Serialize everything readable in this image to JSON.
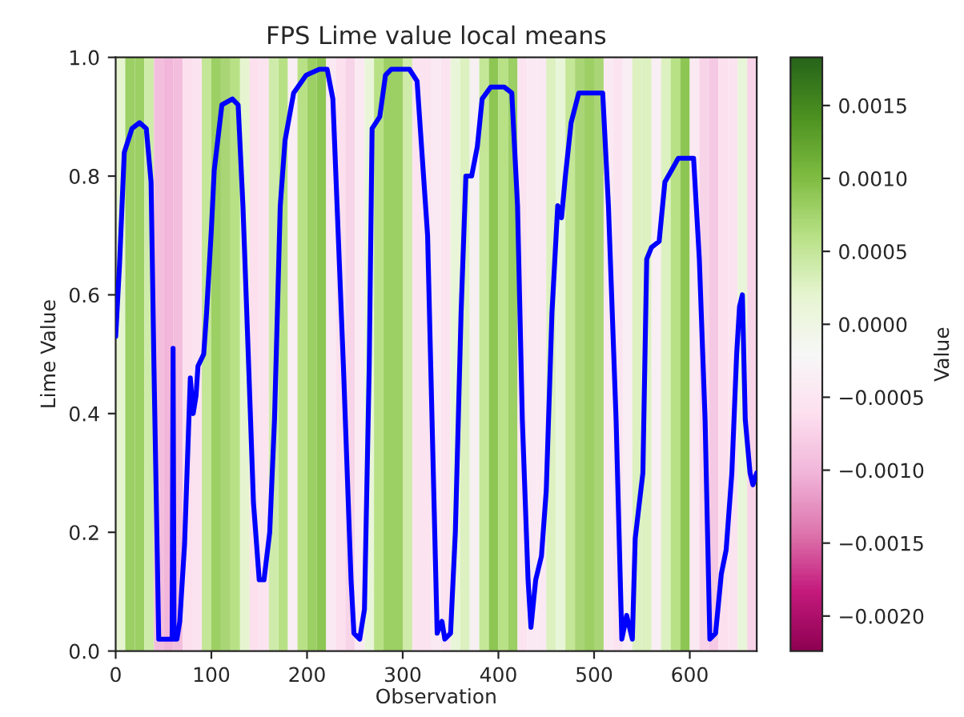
{
  "chart_data": {
    "type": "line",
    "title": "FPS Lime value local means",
    "xlabel": "Observation",
    "ylabel": "Lime Value",
    "clabel": "Value",
    "xlim": [
      0,
      670
    ],
    "xticks": [
      0,
      100,
      200,
      300,
      400,
      500,
      600
    ],
    "ylim": [
      0,
      1.0
    ],
    "yticks": [
      {
        "value": 0,
        "label": "0.0"
      },
      {
        "value": 0.2,
        "label": "0.2"
      },
      {
        "value": 0.4,
        "label": "0.4"
      },
      {
        "value": 0.6,
        "label": "0.6"
      },
      {
        "value": 0.8,
        "label": "0.8"
      },
      {
        "value": 1.0,
        "label": "1.0"
      }
    ],
    "clim": [
      -0.00224,
      0.00183
    ],
    "cticks": [
      {
        "value": 0.0015,
        "label": "0.0015"
      },
      {
        "value": 0.001,
        "label": "0.0010"
      },
      {
        "value": 0.0005,
        "label": "0.0005"
      },
      {
        "value": 0,
        "label": "0.0000"
      },
      {
        "value": -0.0005,
        "label": "−0.0005"
      },
      {
        "value": -0.001,
        "label": "−0.0010"
      },
      {
        "value": -0.0015,
        "label": "−0.0015"
      },
      {
        "value": -0.002,
        "label": "−0.0020"
      }
    ],
    "bands": [
      {
        "axis": "x",
        "from": 0,
        "to": 10,
        "color": "#e6f5d0"
      },
      {
        "axis": "x",
        "from": 10,
        "to": 20,
        "color": "#9ccf64"
      },
      {
        "axis": "x",
        "from": 20,
        "to": 30,
        "color": "#9ccf64"
      },
      {
        "axis": "x",
        "from": 30,
        "to": 40,
        "color": "#cfebaa"
      },
      {
        "axis": "x",
        "from": 40,
        "to": 50,
        "color": "#f3bedd"
      },
      {
        "axis": "x",
        "from": 50,
        "to": 60,
        "color": "#f1b6da"
      },
      {
        "axis": "x",
        "from": 60,
        "to": 70,
        "color": "#f3bedd"
      },
      {
        "axis": "x",
        "from": 70,
        "to": 80,
        "color": "#fce0ee"
      },
      {
        "axis": "x",
        "from": 80,
        "to": 90,
        "color": "#fbe3f0"
      },
      {
        "axis": "x",
        "from": 90,
        "to": 100,
        "color": "#c4e697"
      },
      {
        "axis": "x",
        "from": 100,
        "to": 110,
        "color": "#9ccf64"
      },
      {
        "axis": "x",
        "from": 110,
        "to": 120,
        "color": "#aad576"
      },
      {
        "axis": "x",
        "from": 120,
        "to": 130,
        "color": "#b8e186"
      },
      {
        "axis": "x",
        "from": 130,
        "to": 140,
        "color": "#e6f5d0"
      },
      {
        "axis": "x",
        "from": 140,
        "to": 150,
        "color": "#fce0ee"
      },
      {
        "axis": "x",
        "from": 150,
        "to": 160,
        "color": "#fbe3f0"
      },
      {
        "axis": "x",
        "from": 160,
        "to": 170,
        "color": "#cfebaa"
      },
      {
        "axis": "x",
        "from": 170,
        "to": 180,
        "color": "#b8e186"
      },
      {
        "axis": "x",
        "from": 180,
        "to": 190,
        "color": "#f9eef4"
      },
      {
        "axis": "x",
        "from": 190,
        "to": 200,
        "color": "#b8e186"
      },
      {
        "axis": "x",
        "from": 200,
        "to": 210,
        "color": "#9ccf64"
      },
      {
        "axis": "x",
        "from": 210,
        "to": 220,
        "color": "#8ec653"
      },
      {
        "axis": "x",
        "from": 220,
        "to": 230,
        "color": "#fae9f2"
      },
      {
        "axis": "x",
        "from": 230,
        "to": 240,
        "color": "#fce0ee"
      },
      {
        "axis": "x",
        "from": 240,
        "to": 250,
        "color": "#f8d4e8"
      },
      {
        "axis": "x",
        "from": 250,
        "to": 260,
        "color": "#fae9f2"
      },
      {
        "axis": "x",
        "from": 260,
        "to": 270,
        "color": "#e9f5d8"
      },
      {
        "axis": "x",
        "from": 270,
        "to": 280,
        "color": "#b8e186"
      },
      {
        "axis": "x",
        "from": 280,
        "to": 290,
        "color": "#9ccf64"
      },
      {
        "axis": "x",
        "from": 290,
        "to": 300,
        "color": "#9ccf64"
      },
      {
        "axis": "x",
        "from": 300,
        "to": 310,
        "color": "#cfebaa"
      },
      {
        "axis": "x",
        "from": 310,
        "to": 320,
        "color": "#fbe3f0"
      },
      {
        "axis": "x",
        "from": 320,
        "to": 330,
        "color": "#fbe3f0"
      },
      {
        "axis": "x",
        "from": 330,
        "to": 340,
        "color": "#fae9f2"
      },
      {
        "axis": "x",
        "from": 340,
        "to": 350,
        "color": "#fbe3f0"
      },
      {
        "axis": "x",
        "from": 350,
        "to": 360,
        "color": "#e9f5d8"
      },
      {
        "axis": "x",
        "from": 360,
        "to": 370,
        "color": "#dcf0c0"
      },
      {
        "axis": "x",
        "from": 370,
        "to": 380,
        "color": "#f6f0f3"
      },
      {
        "axis": "x",
        "from": 380,
        "to": 390,
        "color": "#c4e697"
      },
      {
        "axis": "x",
        "from": 390,
        "to": 400,
        "color": "#8ec653"
      },
      {
        "axis": "x",
        "from": 400,
        "to": 410,
        "color": "#b8e186"
      },
      {
        "axis": "x",
        "from": 410,
        "to": 420,
        "color": "#9ccf64"
      },
      {
        "axis": "x",
        "from": 420,
        "to": 430,
        "color": "#fbe3f0"
      },
      {
        "axis": "x",
        "from": 430,
        "to": 440,
        "color": "#fae9f2"
      },
      {
        "axis": "x",
        "from": 440,
        "to": 450,
        "color": "#fae9f2"
      },
      {
        "axis": "x",
        "from": 450,
        "to": 460,
        "color": "#dcf0c0"
      },
      {
        "axis": "x",
        "from": 460,
        "to": 470,
        "color": "#e9f5d8"
      },
      {
        "axis": "x",
        "from": 470,
        "to": 480,
        "color": "#c4e697"
      },
      {
        "axis": "x",
        "from": 480,
        "to": 490,
        "color": "#aad576"
      },
      {
        "axis": "x",
        "from": 490,
        "to": 500,
        "color": "#9ccf64"
      },
      {
        "axis": "x",
        "from": 500,
        "to": 510,
        "color": "#aad576"
      },
      {
        "axis": "x",
        "from": 510,
        "to": 520,
        "color": "#fae9f2"
      },
      {
        "axis": "x",
        "from": 520,
        "to": 530,
        "color": "#fbe3f0"
      },
      {
        "axis": "x",
        "from": 530,
        "to": 540,
        "color": "#f9eef4"
      },
      {
        "axis": "x",
        "from": 540,
        "to": 550,
        "color": "#dcf0c0"
      },
      {
        "axis": "x",
        "from": 550,
        "to": 560,
        "color": "#dcf0c0"
      },
      {
        "axis": "x",
        "from": 560,
        "to": 570,
        "color": "#f9eef4"
      },
      {
        "axis": "x",
        "from": 570,
        "to": 580,
        "color": "#dcf0c0"
      },
      {
        "axis": "x",
        "from": 580,
        "to": 590,
        "color": "#b8e186"
      },
      {
        "axis": "x",
        "from": 590,
        "to": 600,
        "color": "#8ec653"
      },
      {
        "axis": "x",
        "from": 600,
        "to": 610,
        "color": "#fae9f2"
      },
      {
        "axis": "x",
        "from": 610,
        "to": 620,
        "color": "#f8d4e8"
      },
      {
        "axis": "x",
        "from": 620,
        "to": 630,
        "color": "#f5c8e3"
      },
      {
        "axis": "x",
        "from": 630,
        "to": 640,
        "color": "#fce0ee"
      },
      {
        "axis": "x",
        "from": 640,
        "to": 650,
        "color": "#fbe3f0"
      },
      {
        "axis": "x",
        "from": 650,
        "to": 660,
        "color": "#e9f5d8"
      },
      {
        "axis": "x",
        "from": 660,
        "to": 670,
        "color": "#f8d4e8"
      }
    ],
    "series": [
      {
        "color": "#0000ff",
        "x": [
          0,
          4,
          9,
          17,
          25,
          32,
          37,
          40,
          45,
          59,
          60,
          61,
          64,
          67,
          72,
          78,
          81,
          84,
          86,
          92,
          95,
          100,
          103,
          111,
          122,
          128,
          133,
          139,
          144,
          150,
          155,
          161,
          166,
          172,
          177,
          186,
          199,
          213,
          221,
          227,
          238,
          246,
          249,
          255,
          260,
          265,
          268,
          276,
          282,
          288,
          307,
          315,
          326,
          336,
          341,
          344,
          350,
          355,
          361,
          366,
          372,
          378,
          383,
          392,
          406,
          414,
          420,
          425,
          431,
          434,
          439,
          445,
          450,
          456,
          462,
          466,
          470,
          476,
          484,
          509,
          515,
          523,
          529,
          534,
          540,
          543,
          551,
          555,
          560,
          568,
          574,
          581,
          588,
          604,
          610,
          616,
          621,
          627,
          633,
          638,
          644,
          649,
          652,
          655,
          658,
          663,
          666,
          670
        ],
        "values": [
          0.53,
          0.65,
          0.84,
          0.88,
          0.89,
          0.88,
          0.79,
          0.48,
          0.02,
          0.02,
          0.51,
          0.02,
          0.02,
          0.05,
          0.18,
          0.46,
          0.4,
          0.43,
          0.48,
          0.5,
          0.57,
          0.71,
          0.81,
          0.92,
          0.93,
          0.92,
          0.75,
          0.48,
          0.25,
          0.12,
          0.12,
          0.2,
          0.39,
          0.75,
          0.86,
          0.94,
          0.97,
          0.98,
          0.98,
          0.93,
          0.48,
          0.12,
          0.03,
          0.02,
          0.07,
          0.48,
          0.88,
          0.9,
          0.97,
          0.98,
          0.98,
          0.96,
          0.7,
          0.03,
          0.05,
          0.02,
          0.03,
          0.2,
          0.57,
          0.8,
          0.8,
          0.85,
          0.93,
          0.95,
          0.95,
          0.94,
          0.75,
          0.39,
          0.12,
          0.04,
          0.12,
          0.16,
          0.27,
          0.57,
          0.75,
          0.73,
          0.8,
          0.89,
          0.94,
          0.94,
          0.75,
          0.39,
          0.02,
          0.06,
          0.02,
          0.19,
          0.3,
          0.66,
          0.68,
          0.69,
          0.79,
          0.81,
          0.83,
          0.83,
          0.66,
          0.39,
          0.02,
          0.03,
          0.13,
          0.17,
          0.3,
          0.5,
          0.58,
          0.6,
          0.39,
          0.3,
          0.28,
          0.3
        ]
      }
    ]
  }
}
